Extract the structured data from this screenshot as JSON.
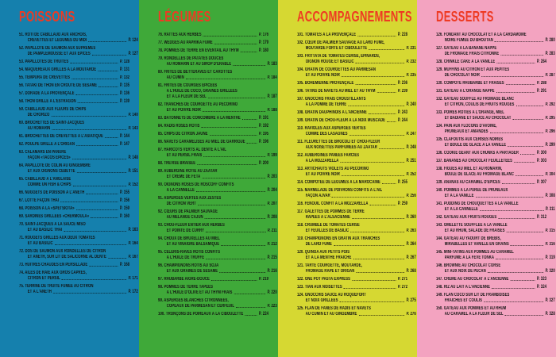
{
  "colors": {
    "accent": "#ee3a23",
    "text": "#121212"
  },
  "columns": [
    {
      "id": "poissons",
      "title": "POISSONS",
      "bg": "#1580ad",
      "entries": [
        {
          "num": "51.",
          "lines": [
            "RÔTI DE CABILLAUD AUX ANCHOIS,",
            "CREVETTES ET LÉGUMES DU MIDI"
          ],
          "page": "P. 124"
        },
        {
          "num": "52.",
          "lines": [
            "PAPILLOTE DE SAUMON AUX SUPRÊMES",
            "DE PAMPLEMOUSSE ET AUX ÉPICES"
          ],
          "page": "P. 127"
        },
        {
          "num": "53.",
          "lines": [
            "PAPILLOTES DE TRUITES"
          ],
          "page": "P. 128"
        },
        {
          "num": "54.",
          "lines": [
            "MAQUEREAUX GRILLÉS À LA MOUTARDE"
          ],
          "page": "P. 131"
        },
        {
          "num": "55.",
          "lines": [
            "TEMPURA DE CREVETTES"
          ],
          "page": "P. 132"
        },
        {
          "num": "56.",
          "lines": [
            "TATAKI DE THON EN CROÛTE DE SÉSAME"
          ],
          "page": "P. 135"
        },
        {
          "num": "57.",
          "lines": [
            "DORADE À LA PROVENÇALE"
          ],
          "page": "P. 136"
        },
        {
          "num": "58.",
          "lines": [
            "THON GRILLÉ À L'ESTRAGON"
          ],
          "page": "P. 139"
        },
        {
          "num": "59.",
          "lines": [
            "CABILLAUD AUX FLEURS DE CHIPS",
            "DE CHORIZO"
          ],
          "page": "P. 140"
        },
        {
          "num": "60.",
          "lines": [
            "BROCHETTES DE SAINT-JACQUES",
            "AU ROMARIN"
          ],
          "page": "P. 143"
        },
        {
          "num": "61.",
          "lines": [
            "BROCHETTES DE CREVETTES À L'ASIATIQUE"
          ],
          "page": "P. 144"
        },
        {
          "num": "62.",
          "lines": [
            "POULPE GRILLÉ À L'ORIGAN"
          ],
          "page": "P. 147"
        },
        {
          "num": "63.",
          "lines": [
            "CALAMARS EN PANURE",
            "FAÇON «TACOS ÉPICÉS»"
          ],
          "page": "P. 148"
        },
        {
          "num": "64.",
          "lines": [
            "PAPILLOTE DE COLIN AU GINGEMBRE",
            "ET AUX OIGNONS CÉBETTE"
          ],
          "page": "P. 151"
        },
        {
          "num": "65.",
          "lines": [
            "CABILLAUD À L'ANGLAISE",
            "COMME UN FISH & CHIPS"
          ],
          "page": "P. 152"
        },
        {
          "num": "66.",
          "lines": [
            "NUGGETS DE POISSON À L'ANETH"
          ],
          "page": "P. 155"
        },
        {
          "num": "67.",
          "lines": [
            "LOTTE FAÇON THAÏ"
          ],
          "page": "P. 156"
        },
        {
          "num": "68.",
          "lines": [
            "POISSON À LA «SPETSIOTA»"
          ],
          "page": "P. 159"
        },
        {
          "num": "69.",
          "lines": [
            "SARDINES GRILLÉES «CHERMOULA»"
          ],
          "page": "P. 160"
        },
        {
          "num": "70.",
          "lines": [
            "SAINT-JACQUES À LA SAUCE MISO",
            "ET AU BASILIC THAÏ"
          ],
          "page": "P. 163"
        },
        {
          "num": "71.",
          "lines": [
            "ROUGETS GRILLÉS AUX DEUX TOMATES",
            "ET AU BASILIC"
          ],
          "page": "P. 164"
        },
        {
          "num": "72.",
          "lines": [
            "DOS DE SAUMON AUX RONDELLES DE CITRON",
            "ET ANETH, SUR LIT DE SALICORNE AL DENTE"
          ],
          "page": "P. 167"
        },
        {
          "num": "73.",
          "lines": [
            "HUÎTRES CHAUDES EN PERSILLADE"
          ],
          "page": "P. 168"
        },
        {
          "num": "74.",
          "lines": [
            "AILES DE RAIE AUX GROS CÂPRES,",
            "CITRON ET PERSIL"
          ],
          "page": "P. 171"
        },
        {
          "num": "75.",
          "lines": [
            "TERRINE DE TRUITE FUMÉE AU CITRON",
            "ET À L'ANETH"
          ],
          "page": "P. 172"
        }
      ]
    },
    {
      "id": "legumes",
      "title": "LÉGUMES",
      "bg": "#3fa939",
      "entries": [
        {
          "num": "76.",
          "lines": [
            "RATTES AUX HERBES"
          ],
          "page": "P. 176"
        },
        {
          "num": "77.",
          "lines": [
            "WEDGES AU PAPRIKA FUMÉ"
          ],
          "page": "P. 179"
        },
        {
          "num": "78.",
          "lines": [
            "POMMES DE TERRE EN ÉVENTAIL AU THYM"
          ],
          "page": "P. 180"
        },
        {
          "num": "79.",
          "lines": [
            "RONDELLES DE PATATES DOUCES",
            "AU ROMARIN ET AU SIROP D'ÉRABLE"
          ],
          "page": "P. 183"
        },
        {
          "num": "80.",
          "lines": [
            "FRITES DE BETTERAVES ET CAROTTES",
            "AU CUMIN"
          ],
          "page": "P. 184"
        },
        {
          "num": "81.",
          "lines": [
            "FRITES DE COURGES ÉPICÉES",
            "À L'HUILE DE COCO, GRAINES GRILLÉES",
            "ET À LA FLEUR DE SEL"
          ],
          "page": "P. 187"
        },
        {
          "num": "82.",
          "lines": [
            "TRANCHES DE COURGETTE AU PECORINO",
            "ET AU POIVRE NOIR"
          ],
          "page": "P. 188"
        },
        {
          "num": "83.",
          "lines": [
            "BÂTONNETS DE CONCOMBRE À LA MENTHE"
          ],
          "page": "P. 191"
        },
        {
          "num": "84.",
          "lines": [
            "RADIS ROSES RÔTIS"
          ],
          "page": "P. 192"
        },
        {
          "num": "85.",
          "lines": [
            "CHIPS DE CITRON JAUNE"
          ],
          "page": "P. 195"
        },
        {
          "num": "86.",
          "lines": [
            "NAVETS CARAMÉLISÉS AU MIEL DE GARRIGUE"
          ],
          "page": "P. 196"
        },
        {
          "num": "87.",
          "lines": [
            "HARICOTS VERTS AL DENTE À L'AIL",
            "ET AU PERSIL FRAIS"
          ],
          "page": "P. 199"
        },
        {
          "num": "88.",
          "lines": [
            "TRÉVISE BRAISÉE"
          ],
          "page": "P. 200"
        },
        {
          "num": "89.",
          "lines": [
            "AUBERGINE RÔTIE AU ZAATAR",
            "ET CRÈME DE FETA"
          ],
          "page": "P. 203"
        },
        {
          "num": "90.",
          "lines": [
            "OIGNONS ROSES DE ROSCOFF CONFITS",
            "À LA CANNELLE"
          ],
          "page": "P. 204"
        },
        {
          "num": "91.",
          "lines": [
            "ASPERGES VERTES AUX ZESTES",
            "DE CITRON VERT"
          ],
          "page": "P. 207"
        },
        {
          "num": "92.",
          "lines": [
            "CŒURS DE PALMIER SAUVAGE",
            "AU MÉLANGE CAJUN"
          ],
          "page": "P. 208"
        },
        {
          "num": "93.",
          "lines": [
            "CHOU-FLEUR ENTIER AUX HERBES",
            "ET POINTE DE CURRY"
          ],
          "page": "P. 211"
        },
        {
          "num": "94.",
          "lines": [
            "CHOUX DE BRUXELLES AU MIEL",
            "ET AU VINAIGRE BALSAMIQUE"
          ],
          "page": "P. 212"
        },
        {
          "num": "95.",
          "lines": [
            "CÉLERIS-RAVES RÔTIS CONFITS",
            "À L'HUILE DE TRUFFE"
          ],
          "page": "P. 215"
        },
        {
          "num": "96.",
          "lines": [
            "CHAMPIGNONS RÔTIS AU SOJA",
            "ET AUX GRAINES DE SÉSAME"
          ],
          "page": "P. 216"
        },
        {
          "num": "97.",
          "lines": [
            "RHUBARBE AIGRE-DOUCE"
          ],
          "page": "P. 219"
        },
        {
          "num": "98.",
          "lines": [
            "POMMES DE TERRE TAPÉES",
            "À L'HUILE D'OLIVE ET AU THYM FRAIS"
          ],
          "page": "P. 220"
        },
        {
          "num": "99.",
          "lines": [
            "ASPERGES BLANCHES CITRONNÉES,",
            "COPEAUX DE PARMESAN ET CERFEUIL"
          ],
          "page": "P. 223"
        },
        {
          "num": "100.",
          "lines": [
            "TRONÇONS DE POIREAUX À LA CIBOULETTE"
          ],
          "page": "P. 224"
        }
      ]
    },
    {
      "id": "accompagnements",
      "title": "ACCOMPAGNEMENTS",
      "bg": "#d6d832",
      "entries": [
        {
          "num": "101.",
          "lines": [
            "TOMATES À LA PROVENÇALE"
          ],
          "page": "P. 228"
        },
        {
          "num": "102.",
          "lines": [
            "CŒUR DE PALMIER SAUVAGE AU LARD FUMÉ,",
            "MOUTARDE FORTE ET CIBOULETTE"
          ],
          "page": "P. 231"
        },
        {
          "num": "103.",
          "lines": [
            "FRITTATA DE TOMATES CERISE, ÉPINARDS,",
            "OIGNON ROUGE ET BASILIC"
          ],
          "page": "P. 232"
        },
        {
          "num": "104.",
          "lines": [
            "GRATIN DE COURGETTES AU PARMESAN",
            "ET AU POIVRE NOIR"
          ],
          "page": "P. 235"
        },
        {
          "num": "105.",
          "lines": [
            "BOHÉMIENNE PROVENÇALE"
          ],
          "page": "P. 236"
        },
        {
          "num": "106.",
          "lines": [
            "TATINS DE NAVETS AU MIEL ET AU THYM"
          ],
          "page": "P. 239"
        },
        {
          "num": "107.",
          "lines": [
            "GNOCCHIS FRAIS CROUSTILLANTS",
            "À LA POMME DE TERRE"
          ],
          "page": "P. 240"
        },
        {
          "num": "108.",
          "lines": [
            "GRATIN DAUPHINOIS À L'ANCIENNE"
          ],
          "page": "P. 243"
        },
        {
          "num": "109.",
          "lines": [
            "GRATIN DE CHOU-FLEUR À LA NOIX MUSCADE"
          ],
          "page": "P. 244"
        },
        {
          "num": "110.",
          "lines": [
            "RAVIOLES AUX ASPERGES VERTES",
            "COMME DES LASAGNES"
          ],
          "page": "P. 247"
        },
        {
          "num": "111.",
          "lines": [
            "FLEURETTES DE BROCOLI ET CHOU-FLEUR",
            "AUX NOISETTES PARFUMÉES AU ZAATAR"
          ],
          "page": "P. 248"
        },
        {
          "num": "112.",
          "lines": [
            "AUBERGINES PANÉES FARCIES",
            "À LA MOZZARELLA"
          ],
          "page": "P. 251"
        },
        {
          "num": "113.",
          "lines": [
            "ARTICHAUTS VIOLETS AU PECORINO",
            "ET AU POIVRE NOIR"
          ],
          "page": "P. 252"
        },
        {
          "num": "114.",
          "lines": [
            "COMPOTÉE DE LÉGUMES À LA MAROCAINE"
          ],
          "page": "P. 255"
        },
        {
          "num": "115.",
          "lines": [
            "MARMELADE DE POIVRONS CONFITS À L'AIL",
            "FAÇON AJVAR"
          ],
          "page": "P. 256"
        },
        {
          "num": "116.",
          "lines": [
            "FENOUIL CONFIT À LA MOZZARELLA"
          ],
          "page": "P. 259"
        },
        {
          "num": "117.",
          "lines": [
            "GALETTES DE POMMES DE TERRE",
            "RÂPÉES À L'ALSACIENNE"
          ],
          "page": "P. 260"
        },
        {
          "num": "118.",
          "lines": [
            "CRUMBLE DE TOMATES CERISE",
            "ET FEUILLES DE BASILIC"
          ],
          "page": "P. 263"
        },
        {
          "num": "119.",
          "lines": [
            "CHAMPIGNONS EN GRATIN AUX TRANCHES",
            "DE LARD FUMÉ"
          ],
          "page": "P. 264"
        },
        {
          "num": "120.",
          "lines": [
            "QUINOA AUX PETITS POIS",
            "ET À LA MENTHE FRAÎCHE"
          ],
          "page": "P. 267"
        },
        {
          "num": "121.",
          "lines": [
            "TARTE COURGETTE, MOUTARDE,",
            "FROMAGE RÂPÉ ET ORIGAN"
          ],
          "page": "P. 268"
        },
        {
          "num": "122.",
          "lines": [
            "ONE POT PASTA EXPRESS"
          ],
          "page": "P. 271"
        },
        {
          "num": "123.",
          "lines": [
            "TIAN AUX NOISETTES"
          ],
          "page": "P. 272"
        },
        {
          "num": "124.",
          "lines": [
            "GNOCCHIS SAUCE AU ROQUEFORT",
            "ET NOIX GRILLÉES"
          ],
          "page": "P. 275"
        },
        {
          "num": "125.",
          "lines": [
            "FLAN DE FANES DE RADIS ET NAVETS",
            "AU CUMIN ET AU GINGEMBRE"
          ],
          "page": "P. 276"
        }
      ]
    },
    {
      "id": "desserts",
      "title": "DESSERTS",
      "bg": "#f3a3c0",
      "entries": [
        {
          "num": "126.",
          "lines": [
            "FONDANT AU CHOCOLAT ET À LA CARDAMOME",
            "NOIRE FUMÉE DU BHOUTAN"
          ],
          "page": "P. 280"
        },
        {
          "num": "127.",
          "lines": [
            "GÂTEAU À LA BANANE NAPPÉ",
            "DE FROMAGE FRAIS CITRONNÉ"
          ],
          "page": "P. 283"
        },
        {
          "num": "128.",
          "lines": [
            "CRINKLE CAKE À LA VANILLE"
          ],
          "page": "P. 284"
        },
        {
          "num": "129.",
          "lines": [
            "MUFFINS AU CITRON ET AUX PÉPITES",
            "DE CHOCOLAT NOIR"
          ],
          "page": "P. 287"
        },
        {
          "num": "130.",
          "lines": [
            "COMPOTE RHUBARBE ET FRAISES"
          ],
          "page": "P. 288"
        },
        {
          "num": "131.",
          "lines": [
            "GÂTEAU À L'ORANGE NAPPÉ"
          ],
          "page": "P. 291"
        },
        {
          "num": "132.",
          "lines": [
            "GÂTEAU SOUFFLÉ AU FROMAGE BLANC",
            "ET CITRON, COULIS DE FRUITS ROUGES"
          ],
          "page": "P. 292"
        },
        {
          "num": "133.",
          "lines": [
            "POIRES RÔTIES À L'ORANGE, MIEL",
            "ET BADIANE ET SAUCE AU CHOCOLAT"
          ],
          "page": "P. 295"
        },
        {
          "num": "134.",
          "lines": [
            "PAIN AUX FLOCONS D'AVOINE,",
            "PRUNEAUX ET AMANDES"
          ],
          "page": "P. 296"
        },
        {
          "num": "135.",
          "lines": [
            "CLAFOUTIS AUX CERISES NOIRES",
            "ET BOULE DE GLACE À LA VANILLE"
          ],
          "page": "P. 299"
        },
        {
          "num": "136.",
          "lines": [
            "COOKIE GÉANT AUX CHUNKS À PARTAGER"
          ],
          "page": "P. 300"
        },
        {
          "num": "137.",
          "lines": [
            "BANANES AU CHOCOLAT FEUILLETÉES"
          ],
          "page": "P. 303"
        },
        {
          "num": "138.",
          "lines": [
            "FIGUES AU MIEL ET AU ROMARIN,",
            "BOULE DE GLACE AU FROMAGE BLANC"
          ],
          "page": "P. 304"
        },
        {
          "num": "139.",
          "lines": [
            "ANANAS AU CARAMEL D'ÉPICES"
          ],
          "page": "P. 307"
        },
        {
          "num": "140.",
          "lines": [
            "POMMES À LA PURÉE DE PRUNEAUX",
            "ET À LA VANILLE"
          ],
          "page": "P. 308"
        },
        {
          "num": "141.",
          "lines": [
            "PUDDING DE CHOUQUETTES À LA VANILLE",
            "ET À LA CANNELLE"
          ],
          "page": "P. 311"
        },
        {
          "num": "142.",
          "lines": [
            "GÂTEAU AUX FRUITS ROUGES"
          ],
          "page": "P. 312"
        },
        {
          "num": "143.",
          "lines": [
            "OMELETTE SOUFFLÉE À LA VANILLE",
            "ET AU RHUM, SALADE DE FRAISES"
          ],
          "page": "P. 315"
        },
        {
          "num": "144.",
          "lines": [
            "GÂTEAU AU YAOURT DE BREBIS,",
            "MIRABELLES ET VANILLE EN GRAINS"
          ],
          "page": "P. 316"
        },
        {
          "num": "145.",
          "lines": [
            "MINI-TATINS AUX POMMES AU CARAMEL",
            "PARFUMÉ À LA FÈVE TONKA"
          ],
          "page": "P. 319"
        },
        {
          "num": "146.",
          "lines": [
            "BROWNIE AU CHOCOLAT CORSÉ",
            "ET AUX NOIX DE PÉCAN"
          ],
          "page": "P. 320"
        },
        {
          "num": "147.",
          "lines": [
            "CRÈME AU CHOCOLAT À L'ANCIENNE"
          ],
          "page": "P. 323"
        },
        {
          "num": "148.",
          "lines": [
            "RIZ AU LAIT À L'ANCIENNE"
          ],
          "page": "P. 324"
        },
        {
          "num": "149.",
          "lines": [
            "FLAN COCO SUR LIT DE FRAMBOISES",
            "FRAÎCHES ET COULIS"
          ],
          "page": "P. 327"
        },
        {
          "num": "150.",
          "lines": [
            "GÂTEAU AUX POMMES ET AU RHUM",
            "AU CARAMEL À LA FLEUR DE SEL"
          ],
          "page": "P. 328"
        }
      ]
    }
  ]
}
